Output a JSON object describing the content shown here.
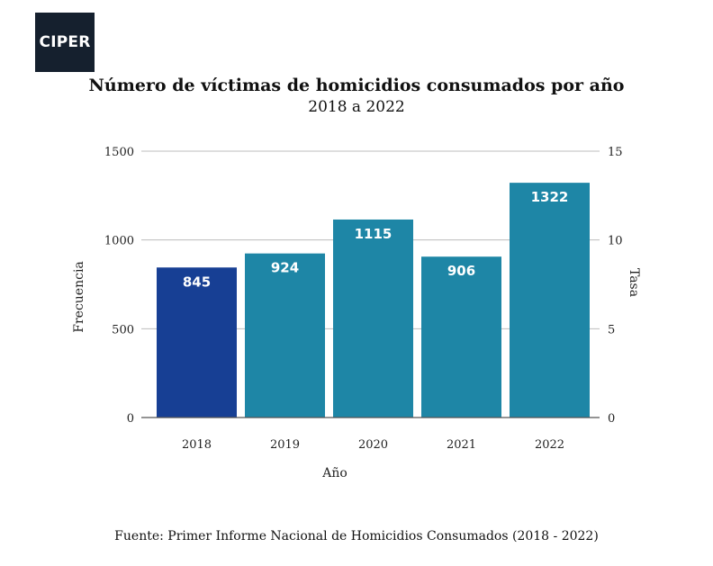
{
  "logo": {
    "text": "CIPER"
  },
  "source": "Fuente: Primer Informe Nacional de Homicidios Consumados (2018 - 2022)",
  "chart_data": {
    "type": "bar",
    "title": "Número de víctimas de homicidios consumados por año",
    "subtitle": "2018 a 2022",
    "xlabel": "Año",
    "ylabel": "Frecuencia",
    "y2label": "Tasa",
    "categories": [
      "2018",
      "2019",
      "2020",
      "2021",
      "2022"
    ],
    "values": [
      845,
      924,
      1115,
      906,
      1322
    ],
    "data_labels": [
      "845",
      "924",
      "1115",
      "906",
      "1322"
    ],
    "bar_colors": [
      "#173f94",
      "#1e86a6",
      "#1e86a6",
      "#1e86a6",
      "#1e86a6"
    ],
    "ylim": [
      0,
      1500
    ],
    "yticks": [
      0,
      500,
      1000,
      1500
    ],
    "ytick_labels": [
      "0",
      "500",
      "1000",
      "1500"
    ],
    "y2lim": [
      0,
      15
    ],
    "y2ticks": [
      0,
      5,
      10,
      15
    ],
    "y2tick_labels": [
      "0",
      "5",
      "10",
      "15"
    ],
    "grid": true,
    "grid_color": "#bdbdbd",
    "axis_color": "#555555"
  }
}
